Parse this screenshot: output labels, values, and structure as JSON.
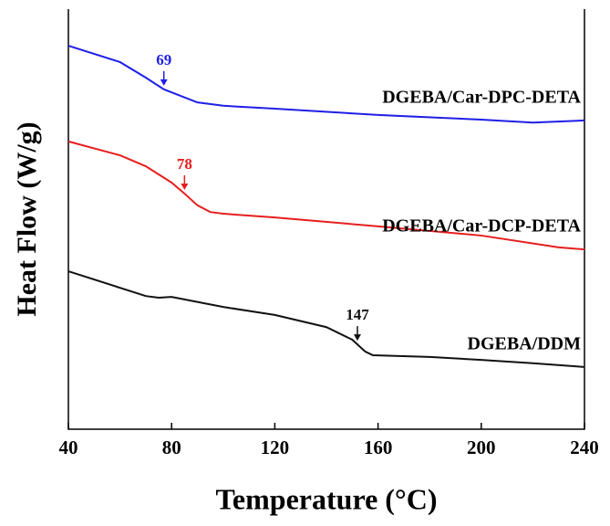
{
  "chart_data": {
    "type": "line",
    "xlabel": "Temperature (°C)",
    "ylabel": "Heat Flow (W/g)",
    "xlim": [
      40,
      240
    ],
    "xticks": [
      40,
      80,
      120,
      160,
      200,
      240
    ],
    "ylim": [
      0,
      100
    ],
    "series": [
      {
        "name": "DGEBA/Car-DPC-DETA",
        "color": "#1f1fe6",
        "x": [
          40,
          60,
          70,
          77,
          90,
          100,
          120,
          160,
          200,
          220,
          240
        ],
        "values": [
          91.3,
          87.4,
          83.7,
          80.9,
          77.8,
          77.0,
          76.3,
          74.8,
          73.7,
          73.0,
          73.5
        ],
        "annotation": {
          "text": "69",
          "x": 77
        }
      },
      {
        "name": "DGEBA/Car-DCP-DETA",
        "color": "#e61e1e",
        "x": [
          40,
          60,
          70,
          80,
          85,
          90,
          95,
          100,
          120,
          160,
          200,
          230,
          240
        ],
        "values": [
          68.5,
          65.2,
          62.6,
          58.7,
          56.1,
          53.3,
          51.7,
          51.3,
          50.4,
          48.3,
          46.1,
          43.3,
          42.8
        ],
        "annotation": {
          "text": "78",
          "x": 85
        }
      },
      {
        "name": "DGEBA/DDM",
        "color": "#111111",
        "x": [
          40,
          70,
          75,
          80,
          100,
          120,
          140,
          150,
          155,
          158,
          180,
          200,
          220,
          240
        ],
        "values": [
          37.6,
          31.7,
          31.3,
          31.5,
          29.1,
          27.2,
          24.3,
          21.3,
          18.5,
          17.6,
          17.2,
          16.5,
          15.7,
          14.8
        ],
        "annotation": {
          "text": "147",
          "x": 152
        }
      }
    ]
  }
}
